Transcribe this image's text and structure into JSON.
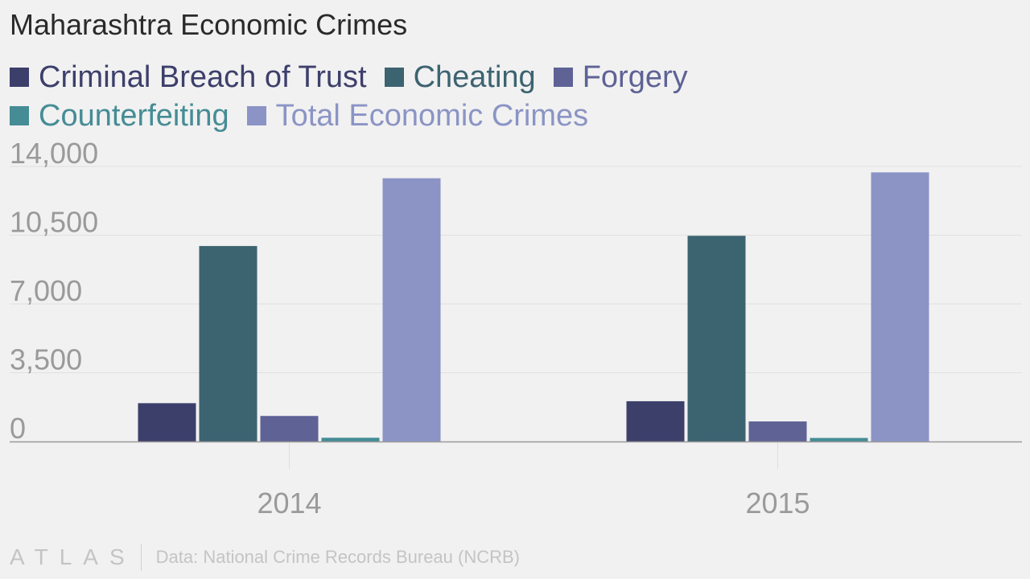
{
  "chart_data": {
    "type": "bar",
    "title": "Maharashtra Economic Crimes",
    "categories": [
      "2014",
      "2015"
    ],
    "series": [
      {
        "name": "Criminal Breach of Trust",
        "color": "#3d3f6b",
        "values": [
          1950,
          2050
        ]
      },
      {
        "name": "Cheating",
        "color": "#3c6370",
        "values": [
          9950,
          10470
        ]
      },
      {
        "name": "Forgery",
        "color": "#5e6295",
        "values": [
          1300,
          1020
        ]
      },
      {
        "name": "Counterfeiting",
        "color": "#458c95",
        "values": [
          190,
          180
        ]
      },
      {
        "name": "Total Economic Crimes",
        "color": "#8b94c5",
        "values": [
          13400,
          13700
        ]
      }
    ],
    "yticks": [
      "14,000",
      "10,500",
      "7,000",
      "3,500",
      "0"
    ],
    "ylim": [
      0,
      14000
    ],
    "grid": true,
    "legend_position": "top-left"
  },
  "footer": {
    "logo": "ATLAS",
    "source": "Data: National Crime Records Bureau (NCRB)"
  }
}
